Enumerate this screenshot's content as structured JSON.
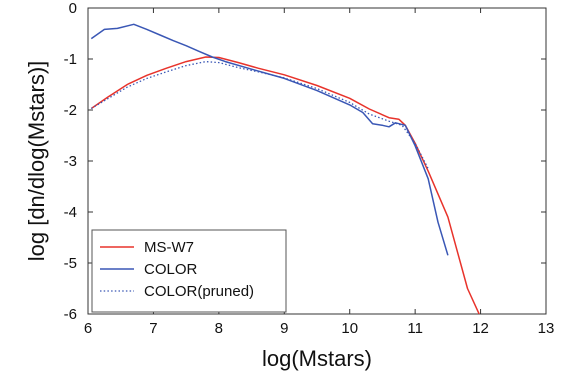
{
  "chart_data": {
    "type": "line",
    "xlabel": "log(Mstars)",
    "ylabel": "log [dn/dlog(Mstars)]",
    "xlim": [
      6,
      13
    ],
    "ylim": [
      -6,
      0
    ],
    "x_ticks": [
      "6",
      "7",
      "8",
      "9",
      "10",
      "11",
      "12",
      "13"
    ],
    "y_ticks": [
      "0",
      "-1",
      "-2",
      "-3",
      "-4",
      "-5",
      "-6"
    ],
    "grid": false,
    "legend_position": "bottom-left",
    "series": [
      {
        "name": "MS-W7",
        "color": "#e8332b",
        "style": "solid",
        "x": [
          6.05,
          6.3,
          6.6,
          6.9,
          7.2,
          7.5,
          7.8,
          8.0,
          8.3,
          8.6,
          9.0,
          9.5,
          10.0,
          10.3,
          10.6,
          10.75,
          10.85,
          11.0,
          11.2,
          11.5,
          11.8,
          12.05
        ],
        "y": [
          -1.97,
          -1.75,
          -1.5,
          -1.32,
          -1.18,
          -1.05,
          -0.96,
          -0.97,
          -1.07,
          -1.18,
          -1.31,
          -1.52,
          -1.77,
          -1.98,
          -2.15,
          -2.18,
          -2.3,
          -2.65,
          -3.2,
          -4.1,
          -5.5,
          -6.2
        ]
      },
      {
        "name": "COLOR",
        "color": "#3a57b5",
        "style": "solid",
        "x": [
          6.05,
          6.25,
          6.45,
          6.7,
          6.9,
          7.1,
          7.3,
          7.5,
          7.7,
          7.9,
          8.1,
          8.5,
          9.0,
          9.5,
          10.0,
          10.2,
          10.35,
          10.5,
          10.6,
          10.7,
          10.85,
          11.0,
          11.2,
          11.35,
          11.5
        ],
        "y": [
          -0.6,
          -0.42,
          -0.4,
          -0.32,
          -0.42,
          -0.53,
          -0.64,
          -0.74,
          -0.85,
          -0.96,
          -1.05,
          -1.2,
          -1.38,
          -1.62,
          -1.9,
          -2.05,
          -2.27,
          -2.3,
          -2.33,
          -2.25,
          -2.3,
          -2.7,
          -3.35,
          -4.2,
          -4.85
        ]
      },
      {
        "name": "COLOR(pruned)",
        "color": "#3a57b5",
        "style": "dotted",
        "x": [
          6.05,
          6.3,
          6.6,
          6.9,
          7.2,
          7.5,
          7.8,
          8.0,
          8.3,
          8.6,
          9.0,
          9.5,
          10.0,
          10.3,
          10.6,
          10.8,
          11.0,
          11.2
        ],
        "y": [
          -1.97,
          -1.78,
          -1.55,
          -1.38,
          -1.25,
          -1.13,
          -1.05,
          -1.07,
          -1.17,
          -1.25,
          -1.37,
          -1.58,
          -1.85,
          -2.08,
          -2.22,
          -2.3,
          -2.65,
          -3.15
        ]
      }
    ]
  }
}
